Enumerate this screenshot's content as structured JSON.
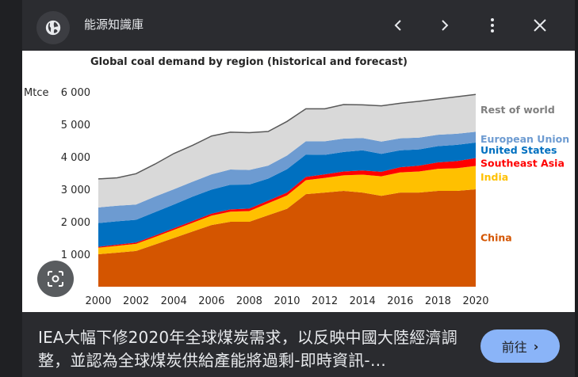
{
  "header": {
    "site_name": "能源知識庫",
    "icons": {
      "site": "globe-icon",
      "prev": "chevron-left-icon",
      "next": "chevron-right-icon",
      "more": "more-vert-icon",
      "close": "close-icon"
    }
  },
  "caption": {
    "text": "IEA大幅下修2020年全球煤炭需求，以反映中國大陸經濟調整，並認為全球煤炭供給產能將過剩-即時資訊-…"
  },
  "visit_button": {
    "label": "前往"
  },
  "lens_button": {
    "icon": "lens-search-icon"
  },
  "colors": {
    "china": "#d45500",
    "india": "#ffc000",
    "southeast_asia": "#ff0000",
    "united_states": "#0070c0",
    "european_union": "#6d9bd1",
    "rest_of_world": "#d9d9d9",
    "accent": "#8ab4f8"
  },
  "chart_data": {
    "type": "area",
    "stacked": true,
    "title": "Global coal demand by region (historical and forecast)",
    "ylabel": "Mtce",
    "xlabel": "",
    "ylim": [
      0,
      6000
    ],
    "yticks": [
      1000,
      2000,
      3000,
      4000,
      5000,
      6000
    ],
    "ytick_labels": [
      "1 000",
      "2 000",
      "3 000",
      "4 000",
      "5 000",
      "6 000"
    ],
    "x": [
      2000,
      2001,
      2002,
      2003,
      2004,
      2005,
      2006,
      2007,
      2008,
      2009,
      2010,
      2011,
      2012,
      2013,
      2014,
      2015,
      2016,
      2017,
      2018,
      2019,
      2020
    ],
    "xtick_labels": [
      "2000",
      "2002",
      "2004",
      "2006",
      "2008",
      "2010",
      "2012",
      "2014",
      "2016",
      "2018",
      "2020"
    ],
    "series": [
      {
        "name": "China",
        "color": "#d45500",
        "values": [
          1000,
          1050,
          1100,
          1300,
          1500,
          1700,
          1900,
          2000,
          2000,
          2200,
          2400,
          2850,
          2900,
          2950,
          2900,
          2800,
          2900,
          2900,
          2950,
          2950,
          3000
        ]
      },
      {
        "name": "India",
        "color": "#ffc000",
        "values": [
          200,
          210,
          220,
          230,
          250,
          270,
          290,
          310,
          330,
          370,
          410,
          430,
          450,
          480,
          550,
          600,
          620,
          650,
          680,
          700,
          720
        ]
      },
      {
        "name": "Southeast Asia",
        "color": "#ff0000",
        "values": [
          30,
          35,
          40,
          45,
          50,
          55,
          60,
          70,
          75,
          80,
          90,
          100,
          110,
          120,
          130,
          140,
          160,
          180,
          200,
          220,
          240
        ]
      },
      {
        "name": "United States",
        "color": "#0070c0",
        "values": [
          730,
          720,
          700,
          720,
          730,
          750,
          740,
          760,
          740,
          680,
          720,
          690,
          600,
          600,
          620,
          550,
          520,
          500,
          500,
          500,
          480
        ]
      },
      {
        "name": "European Union",
        "color": "#6d9bd1",
        "values": [
          480,
          480,
          470,
          480,
          470,
          460,
          470,
          470,
          450,
          400,
          420,
          410,
          420,
          410,
          380,
          380,
          370,
          360,
          350,
          340,
          330
        ]
      },
      {
        "name": "Rest of world",
        "color": "#d9d9d9",
        "values": [
          880,
          860,
          950,
          1000,
          1100,
          1120,
          1180,
          1150,
          1150,
          1050,
          1050,
          1000,
          1000,
          1050,
          1020,
          1100,
          1080,
          1120,
          1100,
          1140,
          1150
        ]
      }
    ],
    "legend_placement": "right, inline beside series"
  }
}
